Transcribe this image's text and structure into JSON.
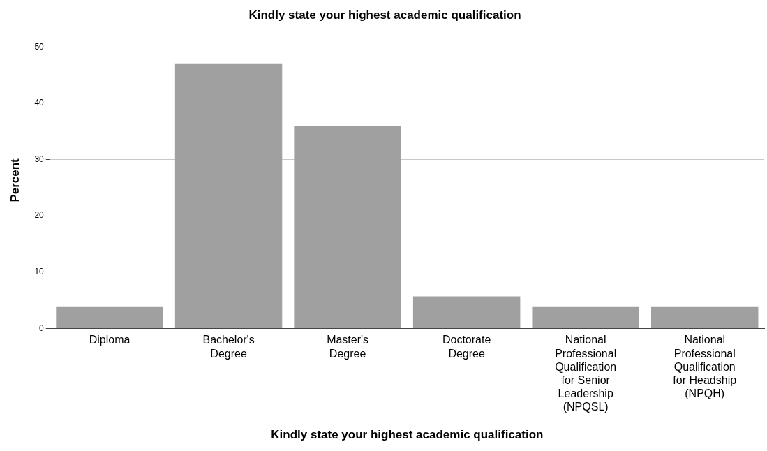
{
  "chart_data": {
    "type": "bar",
    "title": "Kindly state your highest academic qualification",
    "xlabel": "Kindly state your highest academic qualification",
    "ylabel": "Percent",
    "categories": [
      "Diploma",
      "Bachelor's Degree",
      "Master's Degree",
      "Doctorate Degree",
      "National Professional Qualification for Senior Leadership (NPQSL)",
      "National Professional Qualification for Headship (NPQH)"
    ],
    "values": [
      3.8,
      47.1,
      35.9,
      5.7,
      3.8,
      3.8
    ],
    "color": "#a0a0a0",
    "ylim": [
      0,
      52.6
    ],
    "yticks": [
      0,
      10,
      20,
      30,
      40,
      50
    ],
    "grid": "y",
    "legend": false
  }
}
